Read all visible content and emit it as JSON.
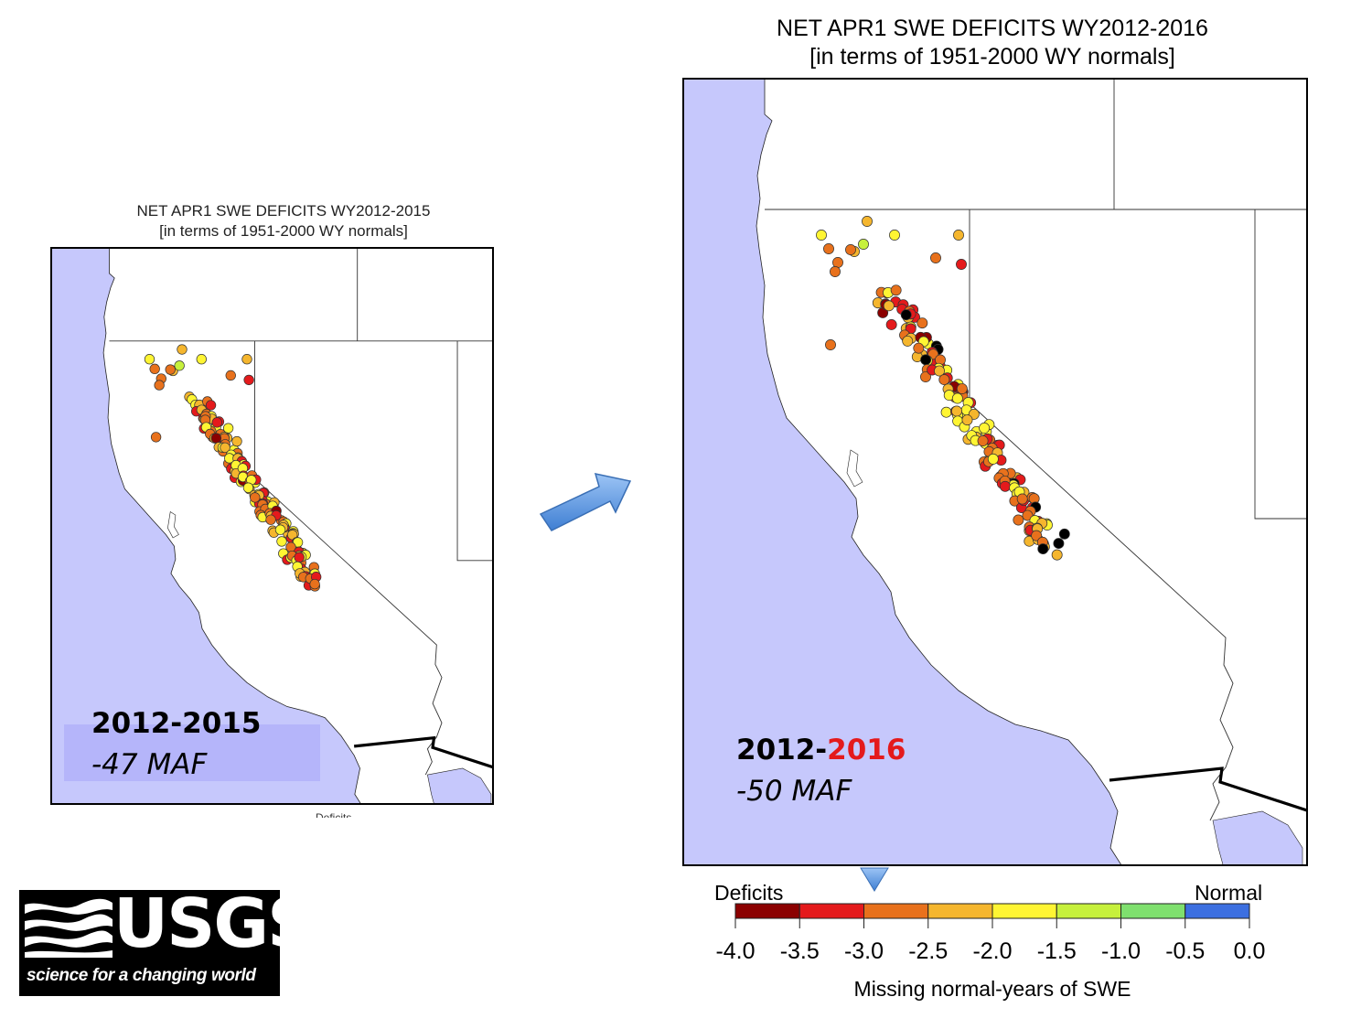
{
  "left_map": {
    "title_line1": "NET APR1 SWE DEFICITS WY2012-2015",
    "title_line2": "[in terms of 1951-2000 WY normals]",
    "period": "2012-2015",
    "total": "-47 MAF",
    "cut_label": "Deficits"
  },
  "right_map": {
    "title_line1": "NET APR1 SWE DEFICITS WY2012-2016",
    "title_line2": "[in terms of 1951-2000 WY normals]",
    "period_prefix": "2012-",
    "period_highlight": "2016",
    "total": "-50 MAF"
  },
  "colorbar": {
    "left_label": "Deficits",
    "right_label": "Normal",
    "title": "Missing normal-years of SWE",
    "ticks": [
      "-4.0",
      "-3.5",
      "-3.0",
      "-2.5",
      "-2.0",
      "-1.5",
      "-1.0",
      "-0.5",
      "0.0"
    ],
    "colors": [
      "#8b0000",
      "#e41a1c",
      "#e8711c",
      "#f5b62e",
      "#fff533",
      "#c6f03c",
      "#7fe06e",
      "#3c6fe0"
    ],
    "marker_value": -2.9
  },
  "logo": {
    "name": "USGS",
    "tagline": "science for a changing world"
  },
  "colors": {
    "ocean": "#c6c8fc",
    "highlight_year": "#e41a1c",
    "arrow": "#4f8fe0"
  }
}
